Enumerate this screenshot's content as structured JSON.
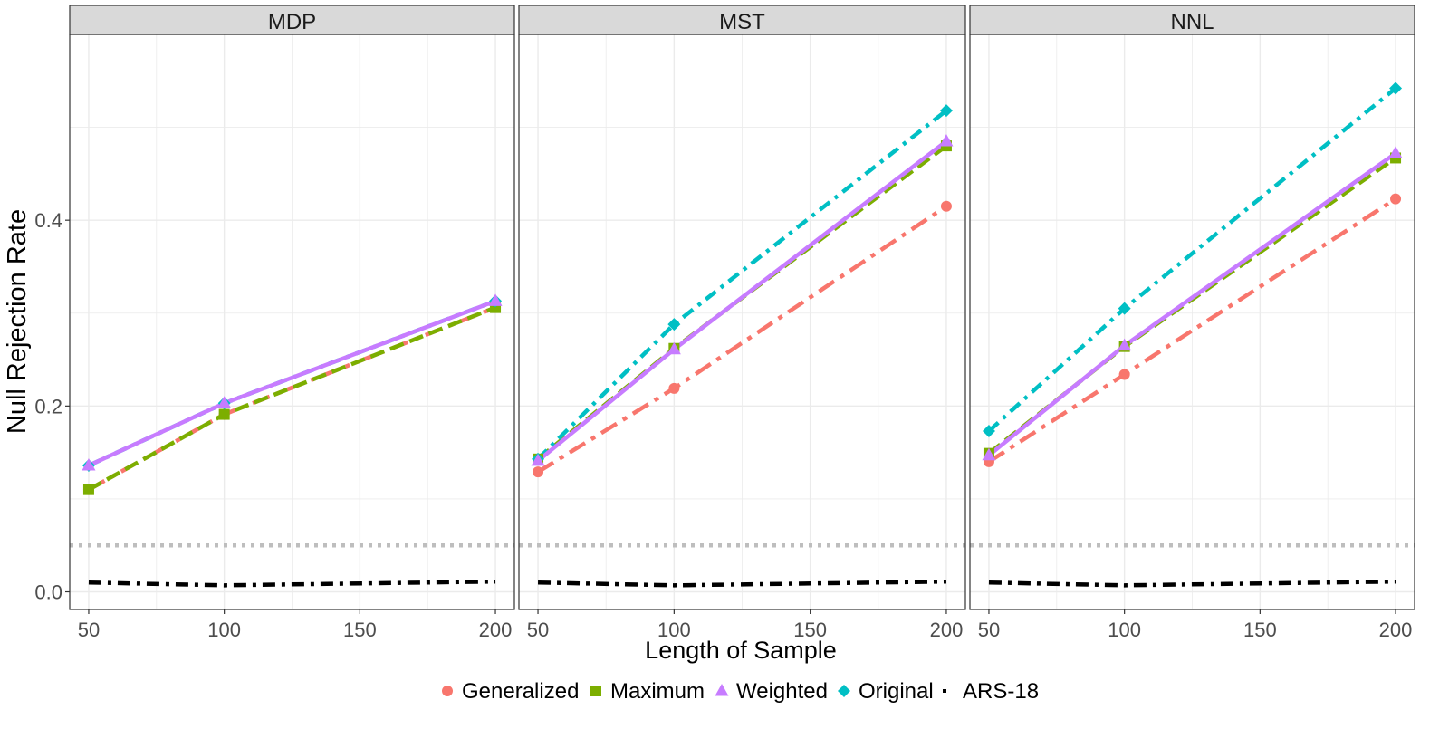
{
  "chart_data": {
    "type": "line",
    "ylabel": "Null Rejection Rate",
    "xlabel": "Length of Sample",
    "x": [
      50,
      100,
      200
    ],
    "x_ticks": [
      50,
      100,
      150,
      200
    ],
    "y_ticks": [
      0.0,
      0.2,
      0.4
    ],
    "y_tick_labels": [
      "0.0",
      "0.2",
      "0.4"
    ],
    "xlim": [
      43,
      207
    ],
    "ylim": [
      -0.019,
      0.6
    ],
    "reference_line": 0.05,
    "grid": true,
    "legend_position": "bottom",
    "panels": [
      {
        "title": "MDP",
        "series": [
          {
            "name": "Generalized",
            "values": [
              0.11,
              0.191,
              0.306
            ]
          },
          {
            "name": "Maximum",
            "values": [
              0.11,
              0.191,
              0.306
            ]
          },
          {
            "name": "Weighted",
            "values": [
              0.136,
              0.203,
              0.313
            ]
          },
          {
            "name": "Original",
            "values": [
              0.136,
              0.203,
              0.313
            ]
          },
          {
            "name": "ARS-18",
            "values": [
              0.01,
              0.007,
              0.011
            ]
          }
        ]
      },
      {
        "title": "MST",
        "series": [
          {
            "name": "Generalized",
            "values": [
              0.129,
              0.219,
              0.415
            ]
          },
          {
            "name": "Maximum",
            "values": [
              0.143,
              0.262,
              0.48
            ]
          },
          {
            "name": "Weighted",
            "values": [
              0.141,
              0.261,
              0.485
            ]
          },
          {
            "name": "Original",
            "values": [
              0.143,
              0.288,
              0.518
            ]
          },
          {
            "name": "ARS-18",
            "values": [
              0.01,
              0.007,
              0.011
            ]
          }
        ]
      },
      {
        "title": "NNL",
        "series": [
          {
            "name": "Generalized",
            "values": [
              0.14,
              0.234,
              0.423
            ]
          },
          {
            "name": "Maximum",
            "values": [
              0.149,
              0.264,
              0.467
            ]
          },
          {
            "name": "Weighted",
            "values": [
              0.147,
              0.265,
              0.472
            ]
          },
          {
            "name": "Original",
            "values": [
              0.173,
              0.305,
              0.542
            ]
          },
          {
            "name": "ARS-18",
            "values": [
              0.01,
              0.007,
              0.011
            ]
          }
        ]
      }
    ],
    "series_styles": [
      {
        "name": "Generalized",
        "color": "#F8766D",
        "marker": "circle",
        "dash": "longdash-dot"
      },
      {
        "name": "Maximum",
        "color": "#7CAE00",
        "marker": "square",
        "dash": "dashed"
      },
      {
        "name": "Weighted",
        "color": "#C77CFF",
        "marker": "triangle",
        "dash": "solid"
      },
      {
        "name": "Original",
        "color": "#00BFC4",
        "marker": "diamond",
        "dash": "dotdash"
      },
      {
        "name": "ARS-18",
        "color": "#000000",
        "marker": "none",
        "dash": "dotdash"
      }
    ],
    "legend": [
      "Generalized",
      "Maximum",
      "Weighted",
      "Original",
      "ARS-18"
    ],
    "strip_bg": "#D9D9D9",
    "grid_color": "#EBEBEB",
    "reference_color": "#BEBEBE"
  }
}
